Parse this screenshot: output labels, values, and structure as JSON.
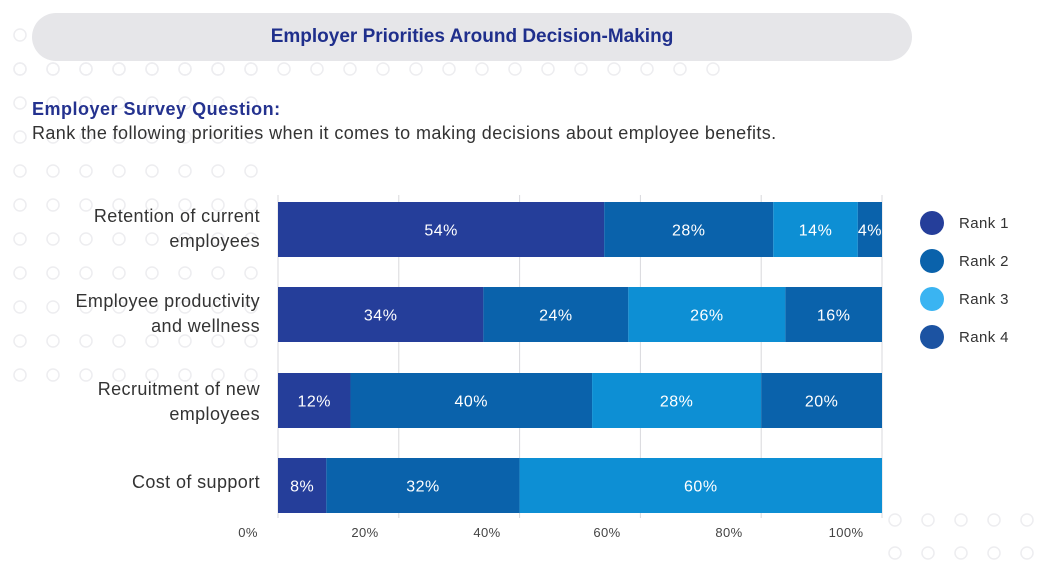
{
  "header": {
    "title": "Employer Priorities Around Decision-Making"
  },
  "question": {
    "label": "Employer Survey Question:",
    "text": "Rank the following priorities when it comes to making decisions about employee benefits."
  },
  "colors": {
    "rank1": "#253e9a",
    "rank2": "#0a62ab",
    "rank3": "#0d8fd4",
    "rank4": "#0a62ab",
    "rank4_legend": "#1c53a2",
    "rank3_legend": "#3ab4f2",
    "title_text": "#1f2f8c"
  },
  "legend": [
    {
      "label": "Rank 1"
    },
    {
      "label": "Rank 2"
    },
    {
      "label": "Rank 3"
    },
    {
      "label": "Rank 4"
    }
  ],
  "chart_data": {
    "type": "bar",
    "orientation": "horizontal",
    "stacked": true,
    "categories": [
      [
        "Retention of current",
        "employees"
      ],
      [
        "Employee productivity",
        "and wellness"
      ],
      [
        "Recruitment of new",
        "employees"
      ],
      [
        "Cost of support"
      ]
    ],
    "series": [
      {
        "name": "Rank 1",
        "values": [
          54,
          34,
          12,
          8
        ]
      },
      {
        "name": "Rank 2",
        "values": [
          28,
          24,
          40,
          32
        ]
      },
      {
        "name": "Rank 3",
        "values": [
          14,
          26,
          28,
          60
        ]
      },
      {
        "name": "Rank 4",
        "values": [
          4,
          16,
          20,
          0
        ]
      }
    ],
    "xlim": [
      0,
      100
    ],
    "xticks": [
      "0%",
      "20%",
      "40%",
      "60%",
      "80%",
      "100%"
    ],
    "grid": true,
    "legend_position": "right"
  }
}
